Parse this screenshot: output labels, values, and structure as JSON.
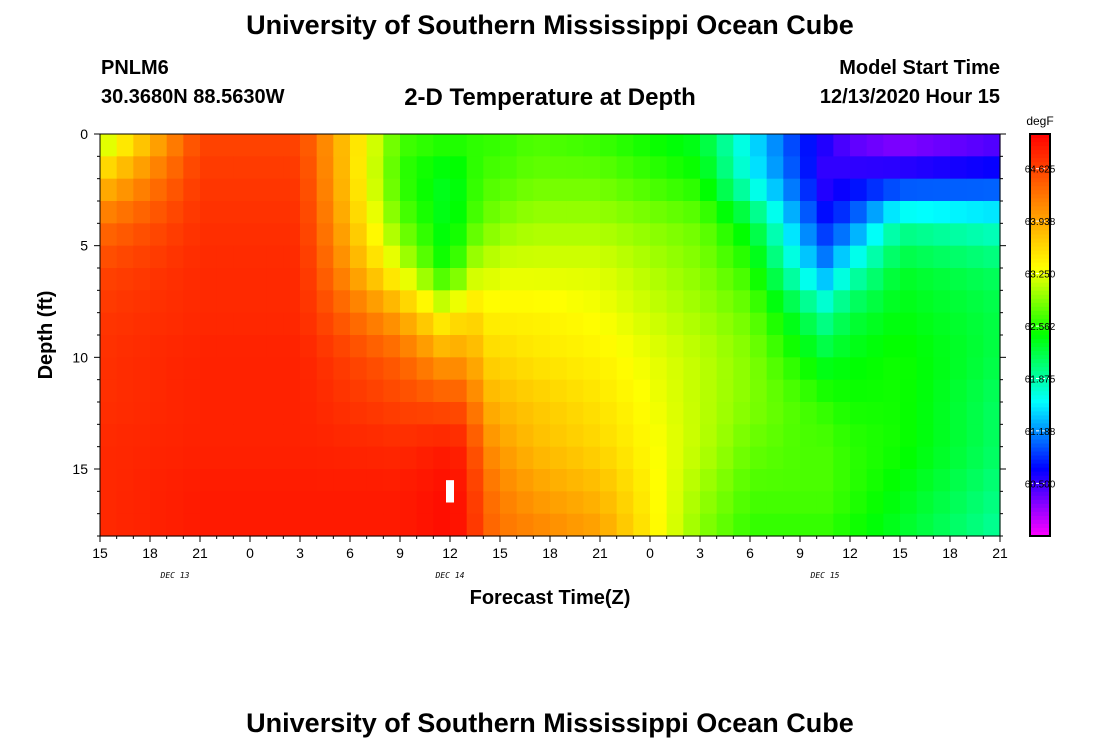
{
  "header": {
    "top_title": "University of Southern Mississippi Ocean Cube",
    "bottom_title": "University of Southern Mississippi Ocean Cube",
    "station_id": "PNLM6",
    "station_coords": "30.3680N 88.5630W",
    "plot_title": "2-D Temperature at Depth",
    "model_label": "Model Start Time",
    "model_time": "12/13/2020 Hour 15"
  },
  "chart_data": {
    "type": "heatmap",
    "title": "2-D Temperature at Depth",
    "xlabel": "Forecast Time(Z)",
    "ylabel": "Depth (ft)",
    "units": "degF",
    "x_hours": [
      0,
      54
    ],
    "depth_range_ft": [
      0,
      18
    ],
    "x_tick_labels": [
      "15",
      "18",
      "21",
      "0",
      "3",
      "6",
      "9",
      "12",
      "15",
      "18",
      "21",
      "0",
      "3",
      "6",
      "9",
      "12",
      "15",
      "18",
      "21"
    ],
    "y_tick_labels": [
      "0",
      "5",
      "10",
      "15"
    ],
    "y_tick_values": [
      0,
      5,
      10,
      15
    ],
    "date_labels": [
      {
        "text": "DEC 13",
        "hour": 4.5
      },
      {
        "text": "DEC 14",
        "hour": 21
      },
      {
        "text": "DEC 15",
        "hour": 43.5
      }
    ],
    "colorbar": {
      "min": 59.81,
      "max": 65.08,
      "labels": [
        "64.625",
        "63.938",
        "63.250",
        "62.562",
        "61.875",
        "61.188",
        "60.500"
      ],
      "label_values": [
        64.625,
        63.938,
        63.25,
        62.562,
        61.875,
        61.188,
        60.5
      ],
      "colors": [
        "#ff00ff",
        "#8000ff",
        "#0000ff",
        "#0080ff",
        "#00ffff",
        "#00ff80",
        "#00ff00",
        "#80ff00",
        "#ffff00",
        "#ffc000",
        "#ff8000",
        "#ff4000",
        "#ff0000"
      ]
    },
    "temperature_profiles": {
      "hours": [
        0,
        6,
        12,
        18,
        21,
        22,
        23,
        24,
        26,
        30,
        36,
        39,
        42,
        43.5,
        45,
        48,
        54
      ],
      "depths_ft": [
        0,
        2,
        4,
        6,
        8,
        10,
        12,
        14,
        16,
        18
      ],
      "values": [
        [
          62.9,
          63.7,
          64.3,
          64.6,
          64.7,
          64.75,
          64.75,
          64.8,
          64.8,
          64.8
        ],
        [
          64.6,
          64.7,
          64.75,
          64.8,
          64.8,
          64.85,
          64.85,
          64.85,
          64.9,
          64.9
        ],
        [
          64.6,
          64.7,
          64.75,
          64.8,
          64.8,
          64.85,
          64.85,
          64.85,
          64.9,
          64.9
        ],
        [
          62.7,
          62.6,
          62.8,
          63.2,
          63.9,
          64.4,
          64.6,
          64.8,
          64.9,
          64.9
        ],
        [
          62.6,
          62.3,
          62.3,
          62.4,
          63.2,
          63.9,
          64.5,
          64.9,
          65.0,
          65.0
        ],
        [
          62.6,
          62.5,
          62.6,
          63.0,
          63.7,
          64.1,
          64.5,
          64.8,
          64.9,
          64.9
        ],
        [
          62.6,
          62.7,
          62.8,
          63.1,
          63.4,
          63.6,
          63.9,
          64.2,
          64.4,
          64.5
        ],
        [
          62.6,
          62.7,
          62.9,
          63.2,
          63.4,
          63.6,
          63.8,
          64.0,
          64.2,
          64.3
        ],
        [
          62.7,
          62.8,
          63.0,
          63.2,
          63.4,
          63.5,
          63.7,
          63.8,
          64.0,
          64.2
        ],
        [
          62.6,
          62.8,
          63.0,
          63.2,
          63.3,
          63.4,
          63.5,
          63.6,
          63.8,
          64.0
        ],
        [
          62.3,
          62.5,
          62.8,
          62.9,
          63.0,
          63.1,
          63.1,
          63.1,
          63.0,
          62.9
        ],
        [
          61.5,
          61.6,
          62.3,
          62.6,
          62.8,
          62.9,
          62.9,
          62.8,
          62.7,
          62.6
        ],
        [
          60.8,
          60.9,
          61.2,
          61.6,
          62.2,
          62.5,
          62.7,
          62.7,
          62.7,
          62.6
        ],
        [
          60.6,
          60.5,
          60.8,
          61.2,
          61.9,
          62.3,
          62.6,
          62.7,
          62.7,
          62.6
        ],
        [
          60.3,
          60.6,
          61.0,
          61.7,
          62.2,
          62.4,
          62.5,
          62.6,
          62.6,
          62.5
        ],
        [
          60.1,
          60.7,
          61.9,
          62.3,
          62.4,
          62.5,
          62.5,
          62.5,
          62.4,
          62.3
        ],
        [
          60.3,
          60.8,
          61.7,
          62.1,
          62.2,
          62.2,
          62.1,
          62.1,
          62.0,
          61.9
        ]
      ]
    }
  }
}
